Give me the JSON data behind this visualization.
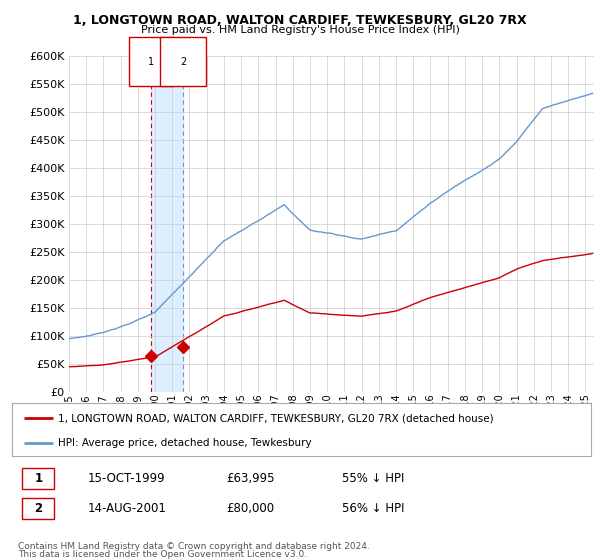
{
  "title": "1, LONGTOWN ROAD, WALTON CARDIFF, TEWKESBURY, GL20 7RX",
  "subtitle": "Price paid vs. HM Land Registry's House Price Index (HPI)",
  "ylim": [
    0,
    600000
  ],
  "xlim_years": [
    1995.0,
    2025.5
  ],
  "sale_points": [
    {
      "year": 1999.79,
      "price": 63995,
      "label": "1"
    },
    {
      "year": 2001.62,
      "price": 80000,
      "label": "2"
    }
  ],
  "table_rows": [
    [
      "1",
      "15-OCT-1999",
      "£63,995",
      "55% ↓ HPI"
    ],
    [
      "2",
      "14-AUG-2001",
      "£80,000",
      "56% ↓ HPI"
    ]
  ],
  "legend_line1": "1, LONGTOWN ROAD, WALTON CARDIFF, TEWKESBURY, GL20 7RX (detached house)",
  "legend_line2": "HPI: Average price, detached house, Tewkesbury",
  "footer": "Contains HM Land Registry data © Crown copyright and database right 2024.\nThis data is licensed under the Open Government Licence v3.0.",
  "property_color": "#cc0000",
  "hpi_color": "#6699cc",
  "shade_color": "#ddeeff",
  "background_color": "#ffffff",
  "grid_color": "#cccccc",
  "fig_width": 6.0,
  "fig_height": 5.6,
  "dpi": 100
}
